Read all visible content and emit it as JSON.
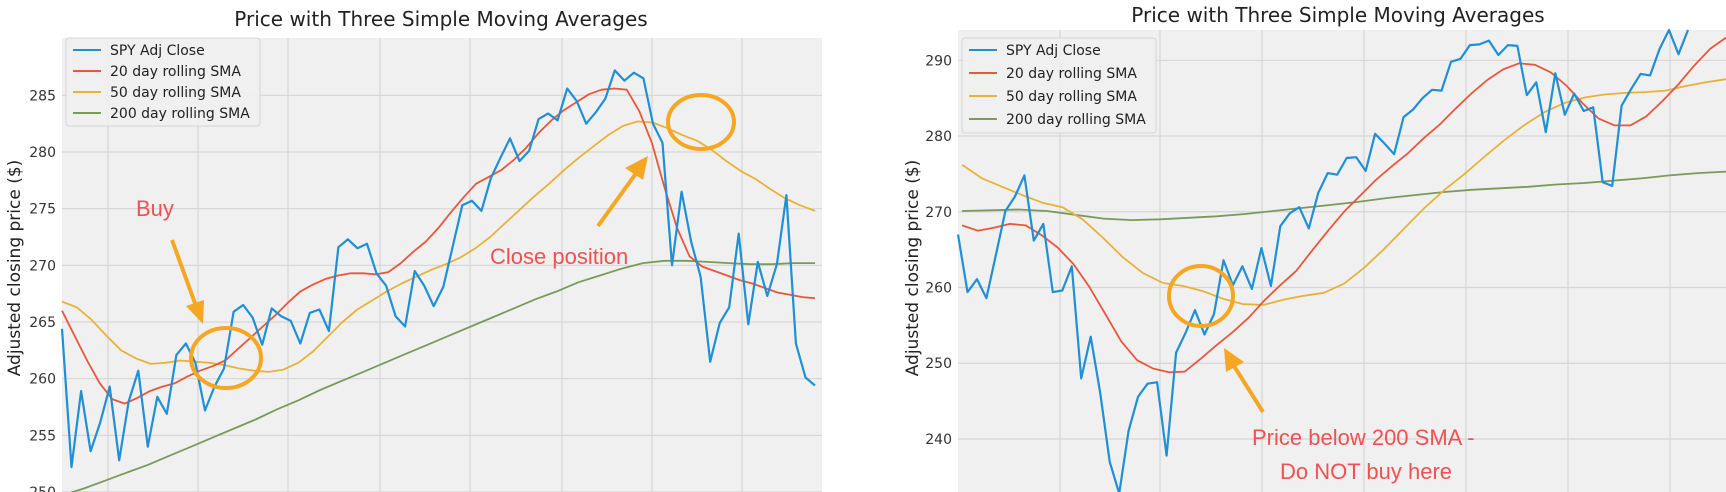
{
  "chart_data": [
    {
      "type": "line",
      "title": "Price with Three Simple Moving Averages",
      "ylabel": "Adjusted closing price ($)",
      "xlabel": "",
      "ylim": [
        250,
        289
      ],
      "yticks": [
        250,
        255,
        260,
        265,
        270,
        275,
        280,
        285
      ],
      "grid": true,
      "legend_position": "top-left",
      "series": [
        {
          "name": "SPY Adj Close",
          "color": "#1f8fd6",
          "values": [
            264.4,
            252.2,
            258.9,
            253.6,
            256.1,
            259.3,
            252.8,
            258.0,
            260.7,
            254.0,
            258.4,
            256.9,
            262.1,
            263.1,
            261.4,
            257.2,
            259.3,
            260.9,
            265.9,
            266.5,
            265.4,
            263.0,
            266.2,
            265.5,
            265.1,
            263.1,
            265.8,
            266.1,
            264.2,
            271.6,
            272.3,
            271.5,
            271.9,
            269.3,
            268.2,
            265.5,
            264.6,
            269.5,
            268.2,
            266.4,
            268.1,
            271.7,
            275.3,
            275.7,
            274.8,
            277.7,
            279.5,
            281.2,
            279.2,
            280.1,
            282.9,
            283.4,
            282.8,
            285.6,
            284.5,
            282.5,
            283.5,
            284.7,
            287.2,
            286.3,
            287.0,
            286.5,
            282.5,
            280.8,
            270.0,
            276.5,
            272.1,
            269.0,
            261.5,
            264.9,
            266.3,
            272.8,
            264.8,
            270.3,
            267.3,
            270.1,
            276.2,
            263.1,
            260.1,
            259.4
          ]
        },
        {
          "name": "20 day rolling SMA",
          "color": "#e8573a",
          "values": [
            266.0,
            263.8,
            261.6,
            259.6,
            258.2,
            257.8,
            258.3,
            258.9,
            259.3,
            259.6,
            260.2,
            260.7,
            261.1,
            261.6,
            262.6,
            263.6,
            264.6,
            265.6,
            266.7,
            267.7,
            268.3,
            268.8,
            269.1,
            269.3,
            269.3,
            269.2,
            269.4,
            270.2,
            271.2,
            272.1,
            273.3,
            274.7,
            276.0,
            277.2,
            277.8,
            278.4,
            279.3,
            280.4,
            281.7,
            282.8,
            283.7,
            284.4,
            285.1,
            285.5,
            285.6,
            285.5,
            283.6,
            280.8,
            276.9,
            273.3,
            270.8,
            269.9,
            269.5,
            269.1,
            268.7,
            268.4,
            268.0,
            267.6,
            267.4,
            267.2,
            267.1
          ]
        },
        {
          "name": "50 day rolling SMA",
          "color": "#e8b23a",
          "values": [
            266.8,
            266.3,
            265.2,
            263.8,
            262.5,
            261.8,
            261.3,
            261.4,
            261.6,
            261.5,
            261.4,
            261.2,
            260.9,
            260.7,
            260.6,
            260.8,
            261.4,
            262.4,
            263.7,
            265.0,
            266.1,
            266.9,
            267.7,
            268.4,
            269.0,
            269.6,
            270.1,
            270.7,
            271.5,
            272.5,
            273.7,
            274.9,
            276.1,
            277.2,
            278.4,
            279.5,
            280.5,
            281.5,
            282.3,
            282.7,
            282.6,
            282.1,
            281.5,
            281.0,
            280.2,
            279.2,
            278.3,
            277.6,
            276.7,
            275.9,
            275.3,
            274.8
          ]
        },
        {
          "name": "200 day rolling SMA",
          "color": "#7a9a5a",
          "values": [
            249.7,
            250.3,
            251.0,
            251.7,
            252.4,
            253.2,
            254.0,
            254.8,
            255.6,
            256.4,
            257.3,
            258.1,
            259.0,
            259.8,
            260.6,
            261.4,
            262.2,
            263.0,
            263.8,
            264.6,
            265.4,
            266.2,
            267.0,
            267.7,
            268.5,
            269.1,
            269.7,
            270.2,
            270.4,
            270.4,
            270.3,
            270.2,
            270.1,
            270.1,
            270.2,
            270.2
          ]
        }
      ],
      "annotations": [
        "Buy",
        "Close position"
      ]
    },
    {
      "type": "line",
      "title": "Price with Three Simple Moving Averages",
      "ylabel": "Adjusted closing price ($)",
      "xlabel": "",
      "ylim": [
        233,
        294
      ],
      "yticks": [
        240,
        250,
        260,
        270,
        280,
        290
      ],
      "grid": true,
      "legend_position": "top-left",
      "series": [
        {
          "name": "SPY Adj Close",
          "color": "#1f8fd6",
          "values": [
            267.0,
            259.4,
            261.1,
            258.6,
            264.3,
            270.1,
            272.0,
            274.8,
            266.2,
            268.4,
            259.4,
            259.6,
            262.8,
            248.0,
            253.5,
            246.1,
            237.0,
            232.8,
            241.1,
            245.6,
            247.3,
            247.5,
            237.8,
            251.4,
            254.0,
            257.0,
            253.8,
            256.5,
            263.6,
            260.3,
            262.8,
            259.8,
            265.2,
            260.2,
            268.1,
            269.8,
            270.6,
            267.8,
            272.5,
            275.1,
            274.9,
            277.1,
            277.2,
            275.4,
            280.3,
            279.0,
            277.6,
            282.5,
            283.5,
            285.0,
            286.1,
            286.0,
            289.8,
            290.2,
            292.0,
            292.1,
            292.6,
            290.7,
            292.0,
            291.9,
            285.4,
            287.1,
            280.5,
            288.3,
            282.8,
            285.6,
            283.3,
            283.8,
            273.9,
            273.4,
            284.0,
            286.2,
            288.2,
            288.0,
            291.5,
            294.0,
            290.8,
            294.0
          ]
        },
        {
          "name": "20 day rolling SMA",
          "color": "#e8573a",
          "values": [
            268.2,
            267.5,
            267.9,
            268.4,
            268.2,
            266.9,
            265.3,
            263.1,
            260.1,
            256.5,
            252.9,
            250.4,
            249.3,
            248.8,
            248.9,
            250.6,
            252.4,
            254.1,
            256.0,
            258.3,
            260.3,
            262.2,
            264.9,
            267.5,
            270.0,
            272.1,
            274.2,
            276.0,
            277.7,
            279.7,
            281.5,
            283.6,
            285.6,
            287.4,
            288.8,
            289.6,
            289.4,
            288.4,
            286.6,
            284.3,
            282.3,
            281.4,
            281.4,
            282.6,
            284.6,
            286.8,
            289.3,
            291.5,
            293.0
          ]
        },
        {
          "name": "50 day rolling SMA",
          "color": "#e8b23a",
          "values": [
            276.2,
            274.4,
            273.3,
            272.2,
            271.2,
            270.6,
            269.0,
            266.6,
            264.0,
            261.9,
            260.6,
            260.2,
            259.5,
            258.5,
            257.8,
            257.7,
            258.4,
            258.9,
            259.3,
            260.5,
            262.6,
            265.1,
            267.8,
            270.5,
            272.9,
            275.0,
            277.3,
            279.5,
            281.5,
            283.2,
            284.4,
            285.1,
            285.5,
            285.7,
            285.8,
            286.0,
            286.6,
            287.1,
            287.5
          ]
        },
        {
          "name": "200 day rolling SMA",
          "color": "#7a9a5a",
          "values": [
            270.1,
            270.2,
            270.3,
            270.1,
            269.6,
            269.1,
            268.9,
            269.0,
            269.2,
            269.4,
            269.7,
            270.1,
            270.5,
            270.9,
            271.3,
            271.8,
            272.2,
            272.6,
            272.9,
            273.1,
            273.3,
            273.6,
            273.8,
            274.1,
            274.4,
            274.8,
            275.1,
            275.3
          ]
        }
      ],
      "annotations": [
        "Price below 200 SMA -",
        "Do NOT buy here"
      ]
    }
  ]
}
